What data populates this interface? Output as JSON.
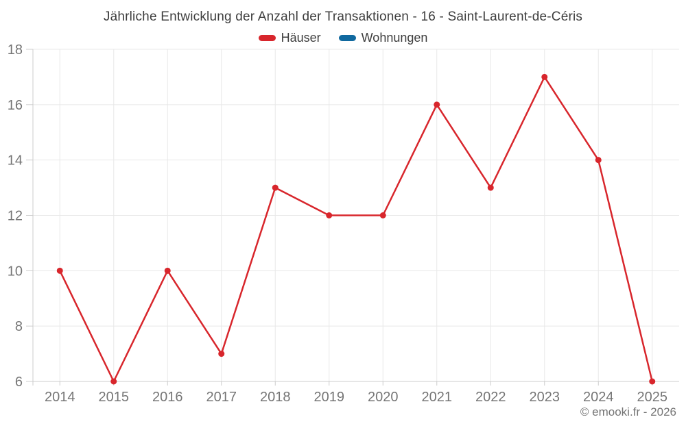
{
  "header": {
    "title": "Jährliche Entwicklung der Anzahl der Transaktionen - 16 - Saint-Laurent-de-Céris"
  },
  "legend": {
    "items": [
      {
        "label": "Häuser",
        "color": "#d8262c"
      },
      {
        "label": "Wohnungen",
        "color": "#10699f"
      }
    ]
  },
  "footer": {
    "copyright": "© emooki.fr - 2026"
  },
  "chart_data": {
    "type": "line",
    "title": "Jährliche Entwicklung der Anzahl der Transaktionen - 16 - Saint-Laurent-de-Céris",
    "categories": [
      "2014",
      "2015",
      "2016",
      "2017",
      "2018",
      "2019",
      "2020",
      "2021",
      "2022",
      "2023",
      "2024",
      "2025"
    ],
    "series": [
      {
        "name": "Häuser",
        "color": "#d8262c",
        "values": [
          10,
          6,
          10,
          7,
          13,
          12,
          12,
          16,
          13,
          17,
          14,
          6
        ]
      },
      {
        "name": "Wohnungen",
        "color": "#10699f",
        "values": []
      }
    ],
    "xlabel": "",
    "ylabel": "",
    "ylim": [
      6,
      18
    ],
    "ytick_step": 2,
    "yticks": [
      6,
      8,
      10,
      12,
      14,
      16,
      18
    ],
    "grid": true,
    "legend_position": "top",
    "styles": {
      "grid_color": "#e8e8e8",
      "axis_color": "#cccccc",
      "tick_color": "#cccccc",
      "axis_label_color": "#757575",
      "point_radius": 4.5,
      "line_width": 2.5
    }
  }
}
